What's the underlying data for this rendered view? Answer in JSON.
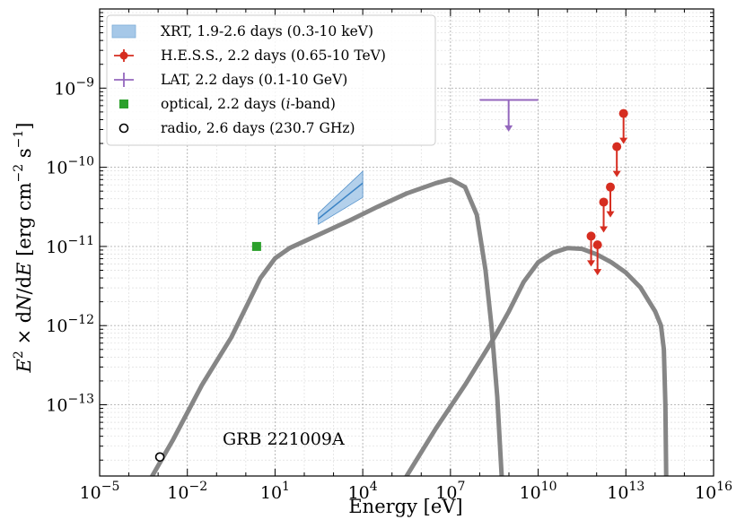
{
  "chart_data": {
    "type": "scatter",
    "title": "",
    "annotation": "GRB 221009A",
    "xlabel": "Energy [eV]",
    "ylabel": "E^2 × dN/dE [erg cm^-2 s^-1]",
    "xscale": "log",
    "yscale": "log",
    "xlim_log10": [
      -5,
      16
    ],
    "ylim_log10": [
      -13.9,
      -8.0
    ],
    "grid": true,
    "legend_position": "top-left",
    "x_ticks": [
      {
        "exp": -5,
        "label": "10^-5"
      },
      {
        "exp": -2,
        "label": "10^-2"
      },
      {
        "exp": 1,
        "label": "10^1"
      },
      {
        "exp": 4,
        "label": "10^4"
      },
      {
        "exp": 7,
        "label": "10^7"
      },
      {
        "exp": 10,
        "label": "10^10"
      },
      {
        "exp": 13,
        "label": "10^13"
      },
      {
        "exp": 16,
        "label": "10^16"
      }
    ],
    "y_ticks": [
      {
        "exp": -13,
        "label": "10^-13"
      },
      {
        "exp": -12,
        "label": "10^-12"
      },
      {
        "exp": -11,
        "label": "10^-11"
      },
      {
        "exp": -10,
        "label": "10^-10"
      },
      {
        "exp": -9,
        "label": "10^-9"
      }
    ],
    "legend": [
      {
        "key": "xrt",
        "label": "XRT, 1.9-2.6 days (0.3-10 keV)",
        "color": "#a6c8e8"
      },
      {
        "key": "hess",
        "label": "H.E.S.S., 2.2 days (0.65-10 TeV)",
        "color": "#d62d20"
      },
      {
        "key": "lat",
        "label": "LAT, 2.2 days (0.1-10 GeV)",
        "color": "#9467bd"
      },
      {
        "key": "optical",
        "label_pre": "optical, 2.2 days (",
        "label_it": "i",
        "label_post": "-band)",
        "color": "#2ca02c"
      },
      {
        "key": "radio",
        "label": "radio, 2.6 days (230.7 GHz)",
        "color": "#000000"
      }
    ],
    "series": [
      {
        "name": "synchrotron model",
        "kind": "line",
        "color": "#808080",
        "points": [
          [
            -3.2,
            -13.9
          ],
          [
            -2.5,
            -13.45
          ],
          [
            -1.5,
            -12.75
          ],
          [
            -0.5,
            -12.15
          ],
          [
            0.5,
            -11.4
          ],
          [
            1.0,
            -11.15
          ],
          [
            1.5,
            -11.02
          ],
          [
            2.5,
            -10.85
          ],
          [
            3.5,
            -10.68
          ],
          [
            4.5,
            -10.5
          ],
          [
            5.5,
            -10.33
          ],
          [
            6.5,
            -10.2
          ],
          [
            7.0,
            -10.15
          ],
          [
            7.5,
            -10.25
          ],
          [
            7.9,
            -10.6
          ],
          [
            8.2,
            -11.3
          ],
          [
            8.4,
            -12.0
          ],
          [
            8.6,
            -12.9
          ],
          [
            8.75,
            -13.9
          ]
        ]
      },
      {
        "name": "inverse Compton model",
        "kind": "line",
        "color": "#808080",
        "points": [
          [
            5.5,
            -13.9
          ],
          [
            6.5,
            -13.3
          ],
          [
            7.5,
            -12.75
          ],
          [
            8.5,
            -12.15
          ],
          [
            9.0,
            -11.82
          ],
          [
            9.5,
            -11.45
          ],
          [
            10.0,
            -11.2
          ],
          [
            10.5,
            -11.08
          ],
          [
            11.0,
            -11.02
          ],
          [
            11.5,
            -11.03
          ],
          [
            12.0,
            -11.1
          ],
          [
            12.5,
            -11.2
          ],
          [
            13.0,
            -11.33
          ],
          [
            13.5,
            -11.52
          ],
          [
            14.0,
            -11.82
          ],
          [
            14.2,
            -12.0
          ],
          [
            14.3,
            -12.3
          ],
          [
            14.35,
            -13.0
          ],
          [
            14.38,
            -13.9
          ]
        ]
      },
      {
        "name": "XRT",
        "kind": "band",
        "color": "#a6c8e8",
        "line_color": "#3a82c4",
        "x": [
          2.48,
          4.0
        ],
        "upper": [
          -10.58,
          -10.05
        ],
        "lower": [
          -10.72,
          -10.38
        ],
        "center": [
          -10.65,
          -10.2
        ]
      },
      {
        "name": "LAT",
        "kind": "upper_limit",
        "color": "#9467bd",
        "x_range": [
          8.0,
          10.0
        ],
        "x_arrow": 8.99,
        "y": -9.15,
        "arrow_to": -9.55
      },
      {
        "name": "H.E.S.S.",
        "kind": "upper_limits",
        "color": "#d62d20",
        "points": [
          [
            11.81,
            -10.87
          ],
          [
            12.03,
            -10.98
          ],
          [
            12.24,
            -10.44
          ],
          [
            12.47,
            -10.25
          ],
          [
            12.69,
            -9.74
          ],
          [
            12.92,
            -9.32
          ]
        ]
      },
      {
        "name": "optical",
        "kind": "point",
        "color": "#2ca02c",
        "marker": "square",
        "points": [
          [
            0.37,
            -11.0
          ]
        ]
      },
      {
        "name": "radio",
        "kind": "point",
        "color": "#000000",
        "marker": "open-circle",
        "points": [
          [
            -2.94,
            -13.66
          ]
        ]
      }
    ]
  }
}
